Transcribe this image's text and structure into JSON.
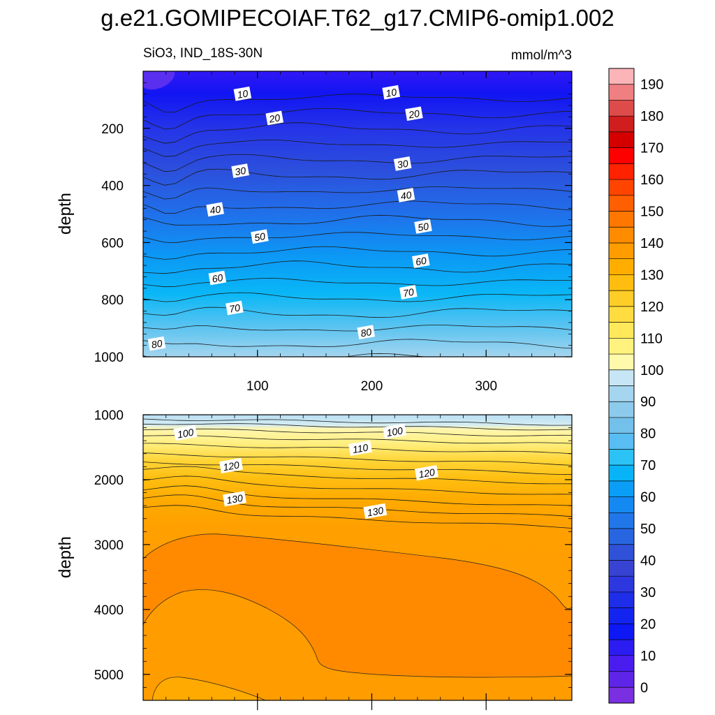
{
  "figure": {
    "title": "g.e21.GOMIPECOIAF.T62_g17.CMIP6-omip1.002",
    "left_label": "SiO3, IND_18S-30N",
    "right_label": "mmol/m^3"
  },
  "chart_data": [
    {
      "type": "heatmap",
      "panel": "upper",
      "title": "SiO3, IND_18S-30N",
      "units": "mmol/m^3",
      "xlabel": "",
      "ylabel": "depth",
      "xlim": [
        0,
        375
      ],
      "ylim": [
        1000,
        0
      ],
      "x_ticks": [
        100,
        200,
        300
      ],
      "y_ticks": [
        200,
        400,
        600,
        800,
        1000
      ],
      "contour_interval": 5,
      "contour_labels": [
        {
          "value": "10",
          "x": 87,
          "y": 80
        },
        {
          "value": "10",
          "x": 217,
          "y": 75
        },
        {
          "value": "20",
          "x": 115,
          "y": 165
        },
        {
          "value": "20",
          "x": 237,
          "y": 150
        },
        {
          "value": "30",
          "x": 85,
          "y": 350
        },
        {
          "value": "30",
          "x": 227,
          "y": 325
        },
        {
          "value": "40",
          "x": 63,
          "y": 485
        },
        {
          "value": "40",
          "x": 230,
          "y": 435
        },
        {
          "value": "50",
          "x": 102,
          "y": 580
        },
        {
          "value": "50",
          "x": 245,
          "y": 545
        },
        {
          "value": "60",
          "x": 65,
          "y": 725
        },
        {
          "value": "60",
          "x": 243,
          "y": 665
        },
        {
          "value": "70",
          "x": 80,
          "y": 830
        },
        {
          "value": "70",
          "x": 232,
          "y": 775
        },
        {
          "value": "80",
          "x": 12,
          "y": 955
        },
        {
          "value": "80",
          "x": 195,
          "y": 915
        }
      ]
    },
    {
      "type": "heatmap",
      "panel": "lower",
      "title": "",
      "units": "mmol/m^3",
      "xlabel": "",
      "ylabel": "depth",
      "xlim": [
        0,
        375
      ],
      "ylim": [
        5400,
        1000
      ],
      "x_ticks": [
        100,
        200,
        300
      ],
      "y_ticks": [
        1000,
        2000,
        3000,
        4000,
        5000
      ],
      "contour_interval": 5,
      "contour_labels": [
        {
          "value": "100",
          "x": 37,
          "y": 1285
        },
        {
          "value": "100",
          "x": 220,
          "y": 1260
        },
        {
          "value": "110",
          "x": 190,
          "y": 1520
        },
        {
          "value": "120",
          "x": 77,
          "y": 1790
        },
        {
          "value": "120",
          "x": 248,
          "y": 1900
        },
        {
          "value": "130",
          "x": 80,
          "y": 2300
        },
        {
          "value": "130",
          "x": 203,
          "y": 2490
        }
      ]
    }
  ],
  "colorbar": {
    "labels": [
      "190",
      "180",
      "170",
      "160",
      "150",
      "140",
      "130",
      "120",
      "110",
      "100",
      "90",
      "80",
      "70",
      "60",
      "50",
      "40",
      "30",
      "20",
      "10",
      "0"
    ],
    "colors": [
      "#fbb4b7",
      "#f07f81",
      "#dd4b4b",
      "#d01d1d",
      "#d40000",
      "#ff0000",
      "#ff2200",
      "#ff4400",
      "#ff5f00",
      "#ff7700",
      "#ff8b00",
      "#ff9d00",
      "#ffae00",
      "#ffbe0f",
      "#ffcd28",
      "#ffdc40",
      "#ffe95a",
      "#fff27e",
      "#fff9ac",
      "#c7e6f5",
      "#a6d6ef",
      "#8dcbec",
      "#73c0ea",
      "#58bdf2",
      "#2bc3f6",
      "#08b4f7",
      "#0a9ef7",
      "#1589f2",
      "#2177ea",
      "#2866e1",
      "#3052d8",
      "#3743d2",
      "#2d37e0",
      "#1e2de8",
      "#1424f0",
      "#0d18f5",
      "#2b1cf2",
      "#4b1cf0",
      "#5e24e8",
      "#7a2fe0"
    ]
  }
}
